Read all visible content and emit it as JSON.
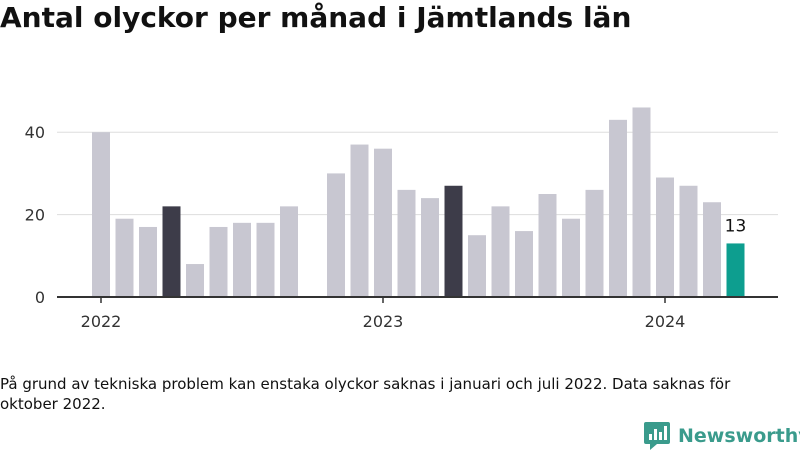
{
  "header": {
    "title": "Antal olyckor per månad i Jämtlands län"
  },
  "chart_data": {
    "type": "bar",
    "y_ticks": [
      0,
      20,
      40
    ],
    "ylim": [
      0,
      50
    ],
    "x_tick_labels": [
      {
        "label": "2022",
        "month": "2022-01"
      },
      {
        "label": "2023",
        "month": "2023-01"
      },
      {
        "label": "2024",
        "month": "2024-01"
      }
    ],
    "months": [
      "2022-01",
      "2022-02",
      "2022-03",
      "2022-04",
      "2022-05",
      "2022-06",
      "2022-07",
      "2022-08",
      "2022-09",
      "2022-10",
      "2022-11",
      "2022-12",
      "2023-01",
      "2023-02",
      "2023-03",
      "2023-04",
      "2023-05",
      "2023-06",
      "2023-07",
      "2023-08",
      "2023-09",
      "2023-10",
      "2023-11",
      "2023-12",
      "2024-01",
      "2024-02",
      "2024-03",
      "2024-04"
    ],
    "values": [
      40,
      19,
      17,
      22,
      8,
      17,
      18,
      18,
      22,
      null,
      30,
      37,
      36,
      26,
      24,
      27,
      15,
      22,
      16,
      25,
      19,
      26,
      43,
      46,
      29,
      27,
      23,
      13
    ],
    "highlight_months": [
      "2022-04",
      "2023-04"
    ],
    "latest_month": "2024-04",
    "value_label": {
      "month": "2024-04",
      "text": "13"
    },
    "grid": true,
    "colors": {
      "default": "#c8c7d1",
      "highlight": "#3d3c49",
      "latest": "#0d9e8f",
      "grid": "#dddddd",
      "axis": "#333333"
    }
  },
  "footer": {
    "note": "På grund av tekniska problem kan enstaka olyckor saknas i januari och juli 2022. Data saknas för oktober 2022.",
    "brand": "Newsworthy",
    "brand_color": "#3a9b8c",
    "brand_icon": "bar-chart-speech-bubble-icon"
  }
}
